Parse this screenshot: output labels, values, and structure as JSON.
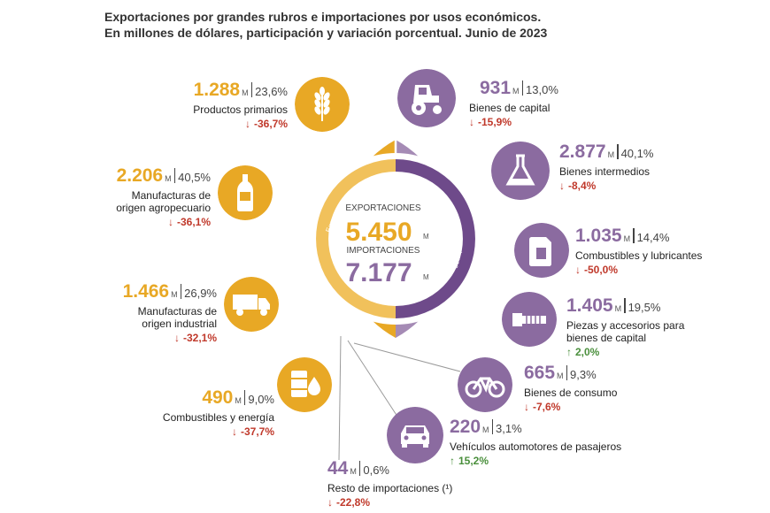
{
  "title_line1": "Exportaciones por grandes rubros e importaciones por usos económicos.",
  "title_line2": "En millones de dólares, participación y variación porcentual. Junio de 2023",
  "colors": {
    "exports": "#E8A825",
    "imports": "#8B6BA0",
    "down": "#c0392b",
    "up": "#4a8f3c"
  },
  "center": {
    "exports_label": "EXPORTACIONES",
    "exports_value": "5.450",
    "imports_label": "IMPORTACIONES",
    "imports_value": "7.177",
    "unit": "M",
    "ring_exports_label": "Exportaciones",
    "ring_imports_label": "Importaciones"
  },
  "exports": [
    {
      "value": "1.288",
      "unit": "M",
      "share": "23,6%",
      "label": "Productos primarios",
      "variation": "-36,7%",
      "direction": "down",
      "icon": "wheat-icon"
    },
    {
      "value": "2.206",
      "unit": "M",
      "share": "40,5%",
      "label": "Manufacturas de origen agropecuario",
      "variation": "-36,1%",
      "direction": "down",
      "icon": "bottle-icon"
    },
    {
      "value": "1.466",
      "unit": "M",
      "share": "26,9%",
      "label": "Manufacturas de origen industrial",
      "variation": "-32,1%",
      "direction": "down",
      "icon": "truck-icon"
    },
    {
      "value": "490",
      "unit": "M",
      "share": "9,0%",
      "label": "Combustibles y energía",
      "variation": "-37,7%",
      "direction": "down",
      "icon": "oil-drop-icon"
    }
  ],
  "imports": [
    {
      "value": "931",
      "unit": "M",
      "share": "13,0%",
      "label": "Bienes de capital",
      "variation": "-15,9%",
      "direction": "down",
      "icon": "tractor-icon"
    },
    {
      "value": "2.877",
      "unit": "M",
      "share": "40,1%",
      "label": "Bienes intermedios",
      "variation": "-8,4%",
      "direction": "down",
      "icon": "flask-icon"
    },
    {
      "value": "1.035",
      "unit": "M",
      "share": "14,4%",
      "label": "Combustibles y lubricantes",
      "variation": "-50,0%",
      "direction": "down",
      "icon": "jerrycan-icon"
    },
    {
      "value": "1.405",
      "unit": "M",
      "share": "19,5%",
      "label": "Piezas y accesorios para bienes de capital",
      "variation": "2,0%",
      "direction": "up",
      "icon": "bolt-icon"
    },
    {
      "value": "665",
      "unit": "M",
      "share": "9,3%",
      "label": "Bienes de consumo",
      "variation": "-7,6%",
      "direction": "down",
      "icon": "bicycle-icon"
    },
    {
      "value": "220",
      "unit": "M",
      "share": "3,1%",
      "label": "Vehículos automotores de pasajeros",
      "variation": "15,2%",
      "direction": "up",
      "icon": "car-icon"
    },
    {
      "value": "44",
      "unit": "M",
      "share": "0,6%",
      "label": "Resto de importaciones (¹)",
      "variation": "-22,8%",
      "direction": "down",
      "icon": ""
    }
  ]
}
